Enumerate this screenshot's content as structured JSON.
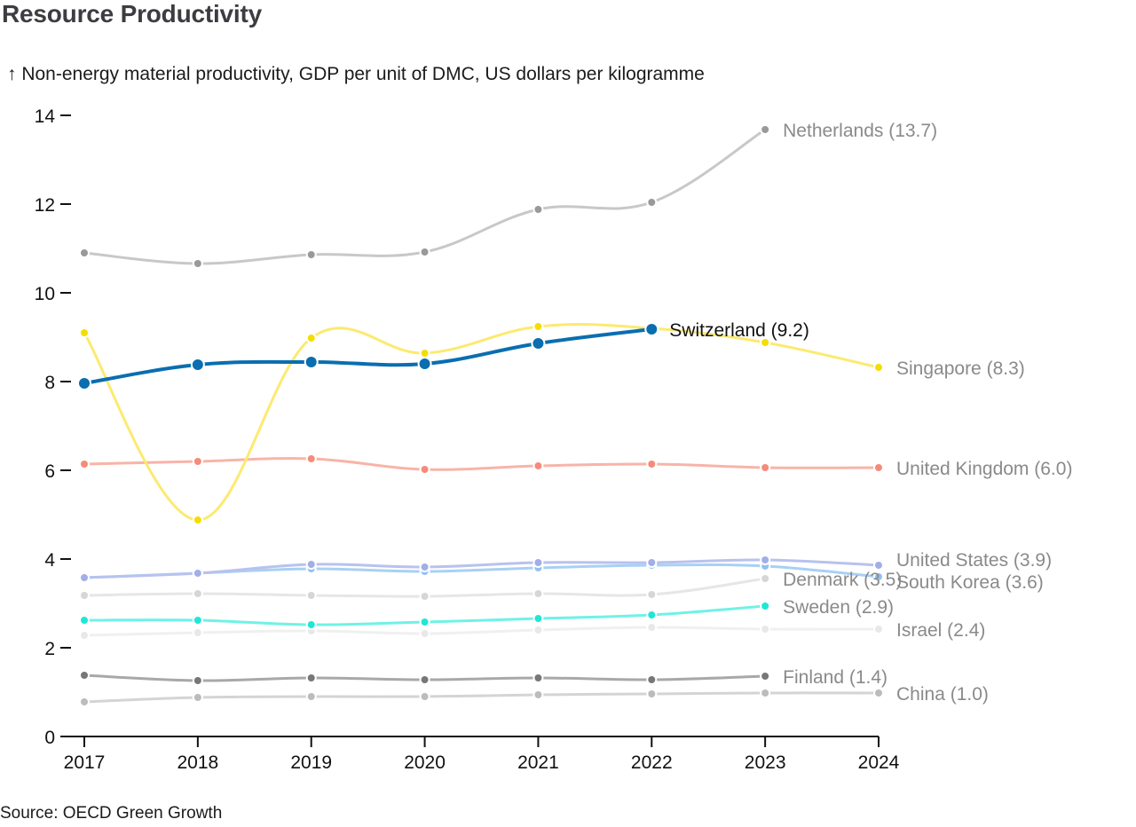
{
  "header": {
    "title": "Resource Productivity",
    "subtitle": "↑ Non-energy material productivity, GDP per unit of DMC, US dollars per kilogramme"
  },
  "footer": {
    "source": "Source: OECD Green Growth"
  },
  "chart_data": {
    "type": "line",
    "title": "Resource Productivity",
    "ylabel": "↑ Non-energy material productivity, GDP per unit of DMC, US dollars per kilogramme",
    "xlabel": "",
    "x": [
      2017,
      2018,
      2019,
      2020,
      2021,
      2022,
      2023,
      2024
    ],
    "xlim": [
      2017,
      2024
    ],
    "ylim": [
      0,
      14
    ],
    "yticks": [
      0,
      2,
      4,
      6,
      8,
      10,
      12,
      14
    ],
    "xticks": [
      "2017",
      "2018",
      "2019",
      "2020",
      "2021",
      "2022",
      "2023",
      "2024"
    ],
    "grid": false,
    "legend": "direct-labels-right",
    "highlighted_series": "Switzerland",
    "series": [
      {
        "name": "Netherlands",
        "label": "Netherlands (13.7)",
        "color": "#c8c8c8",
        "dot_color": "#999999",
        "values": [
          10.9,
          10.66,
          10.86,
          10.92,
          11.88,
          12.04,
          13.68,
          null
        ]
      },
      {
        "name": "China",
        "label": "China (1.0)",
        "color": "#d4d4d4",
        "dot_color": "#bcbcbc",
        "values": [
          0.78,
          0.88,
          0.9,
          0.9,
          0.94,
          0.96,
          0.98,
          0.98
        ]
      },
      {
        "name": "Finland",
        "label": "Finland (1.4)",
        "color": "#a8a8a8",
        "dot_color": "#777777",
        "values": [
          1.38,
          1.26,
          1.32,
          1.28,
          1.32,
          1.28,
          1.36,
          null
        ]
      },
      {
        "name": "Israel",
        "label": "Israel (2.4)",
        "color": "#f0f0f0",
        "dot_color": "#e8e8e8",
        "values": [
          2.28,
          2.34,
          2.38,
          2.32,
          2.4,
          2.46,
          2.42,
          2.42
        ]
      },
      {
        "name": "Sweden",
        "label": "Sweden (2.9)",
        "color": "#6ff2e6",
        "dot_color": "#1de8d6",
        "values": [
          2.62,
          2.62,
          2.52,
          2.58,
          2.66,
          2.74,
          2.94,
          null
        ]
      },
      {
        "name": "Denmark",
        "label": "Denmark (3.5)",
        "color": "#e6e6e6",
        "dot_color": "#d6d6d4",
        "values": [
          3.18,
          3.22,
          3.18,
          3.16,
          3.22,
          3.2,
          3.56,
          null
        ]
      },
      {
        "name": "South Korea",
        "label": "South Korea (3.6)",
        "color": "#a8d0f5",
        "dot_color": "#8ec2f2",
        "values": [
          3.58,
          3.68,
          3.78,
          3.72,
          3.8,
          3.86,
          3.84,
          3.6
        ]
      },
      {
        "name": "United States",
        "label": "United States (3.9)",
        "color": "#b8c2ee",
        "dot_color": "#a2aee8",
        "values": [
          3.58,
          3.68,
          3.88,
          3.82,
          3.92,
          3.92,
          3.98,
          3.86
        ]
      },
      {
        "name": "United Kingdom",
        "label": "United Kingdom (6.0)",
        "color": "#f8b4a8",
        "dot_color": "#f58b78",
        "values": [
          6.14,
          6.2,
          6.26,
          6.02,
          6.1,
          6.14,
          6.06,
          6.06
        ]
      },
      {
        "name": "Singapore",
        "label": "Singapore (8.3)",
        "color": "#fcea70",
        "dot_color": "#f5dd00",
        "values": [
          9.1,
          4.88,
          8.98,
          8.64,
          9.24,
          9.2,
          8.88,
          8.32
        ]
      },
      {
        "name": "Switzerland",
        "label": "Switzerland (9.2)",
        "color": "#0a6eb0",
        "dot_color": "#0a6eb0",
        "values": [
          7.96,
          8.38,
          8.44,
          8.4,
          8.86,
          9.18,
          null,
          null
        ]
      }
    ]
  }
}
